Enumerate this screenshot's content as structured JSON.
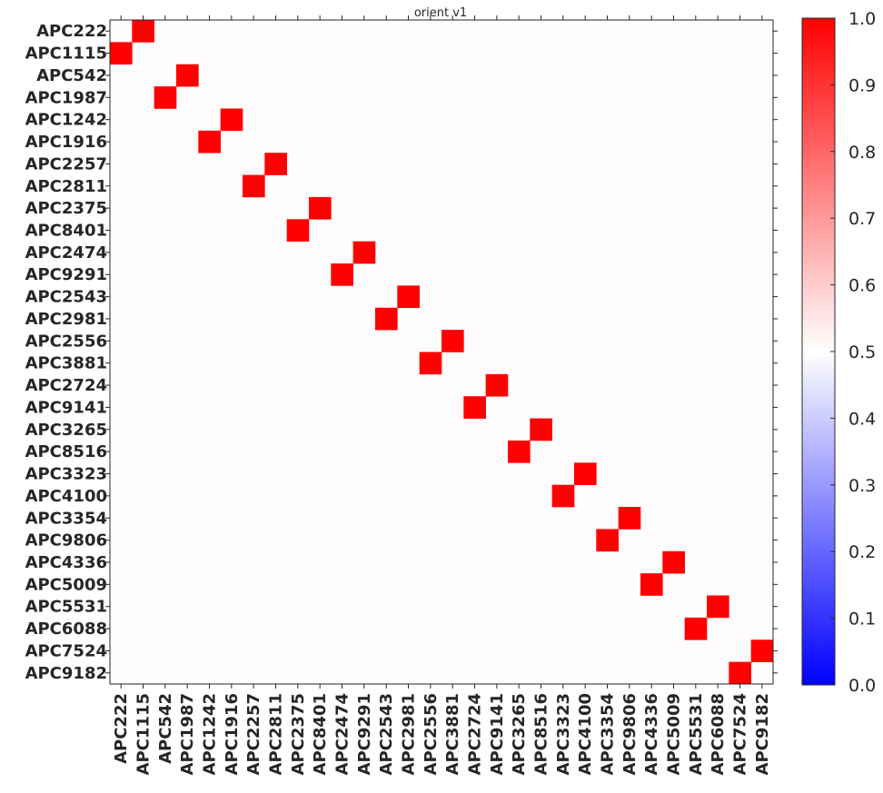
{
  "chart_data": {
    "type": "heatmap",
    "title": "orient v1",
    "labels": [
      "APC222",
      "APC1115",
      "APC542",
      "APC1987",
      "APC1242",
      "APC1916",
      "APC2257",
      "APC2811",
      "APC2375",
      "APC8401",
      "APC2474",
      "APC9291",
      "APC2543",
      "APC2981",
      "APC2556",
      "APC3881",
      "APC2724",
      "APC9141",
      "APC3265",
      "APC8516",
      "APC3323",
      "APC4100",
      "APC3354",
      "APC9806",
      "APC4336",
      "APC5009",
      "APC5531",
      "APC6088",
      "APC7524",
      "APC9182"
    ],
    "default_value": 0.5,
    "cells": [
      {
        "row": 0,
        "col": 1,
        "value": 1.0
      },
      {
        "row": 1,
        "col": 0,
        "value": 1.0
      },
      {
        "row": 2,
        "col": 3,
        "value": 1.0
      },
      {
        "row": 3,
        "col": 2,
        "value": 1.0
      },
      {
        "row": 4,
        "col": 5,
        "value": 1.0
      },
      {
        "row": 5,
        "col": 4,
        "value": 1.0
      },
      {
        "row": 6,
        "col": 7,
        "value": 1.0
      },
      {
        "row": 7,
        "col": 6,
        "value": 1.0
      },
      {
        "row": 8,
        "col": 9,
        "value": 1.0
      },
      {
        "row": 9,
        "col": 8,
        "value": 1.0
      },
      {
        "row": 10,
        "col": 11,
        "value": 1.0
      },
      {
        "row": 11,
        "col": 10,
        "value": 1.0
      },
      {
        "row": 12,
        "col": 13,
        "value": 1.0
      },
      {
        "row": 13,
        "col": 12,
        "value": 1.0
      },
      {
        "row": 14,
        "col": 15,
        "value": 1.0
      },
      {
        "row": 15,
        "col": 14,
        "value": 1.0
      },
      {
        "row": 16,
        "col": 17,
        "value": 1.0
      },
      {
        "row": 17,
        "col": 16,
        "value": 1.0
      },
      {
        "row": 18,
        "col": 19,
        "value": 1.0
      },
      {
        "row": 19,
        "col": 18,
        "value": 1.0
      },
      {
        "row": 20,
        "col": 21,
        "value": 1.0
      },
      {
        "row": 21,
        "col": 20,
        "value": 1.0
      },
      {
        "row": 22,
        "col": 23,
        "value": 1.0
      },
      {
        "row": 23,
        "col": 22,
        "value": 1.0
      },
      {
        "row": 24,
        "col": 25,
        "value": 1.0
      },
      {
        "row": 25,
        "col": 24,
        "value": 1.0
      },
      {
        "row": 26,
        "col": 27,
        "value": 1.0
      },
      {
        "row": 27,
        "col": 26,
        "value": 1.0
      },
      {
        "row": 28,
        "col": 29,
        "value": 1.0
      },
      {
        "row": 29,
        "col": 28,
        "value": 1.0
      }
    ],
    "colorbar": {
      "range": [
        0.0,
        1.0
      ],
      "ticks": [
        "0.0",
        "0.1",
        "0.2",
        "0.3",
        "0.4",
        "0.5",
        "0.6",
        "0.7",
        "0.8",
        "0.9",
        "1.0"
      ],
      "colormap": "bwr",
      "colors": {
        "low": "#0000ff",
        "mid": "#ffffff",
        "high": "#ff0000"
      }
    }
  }
}
